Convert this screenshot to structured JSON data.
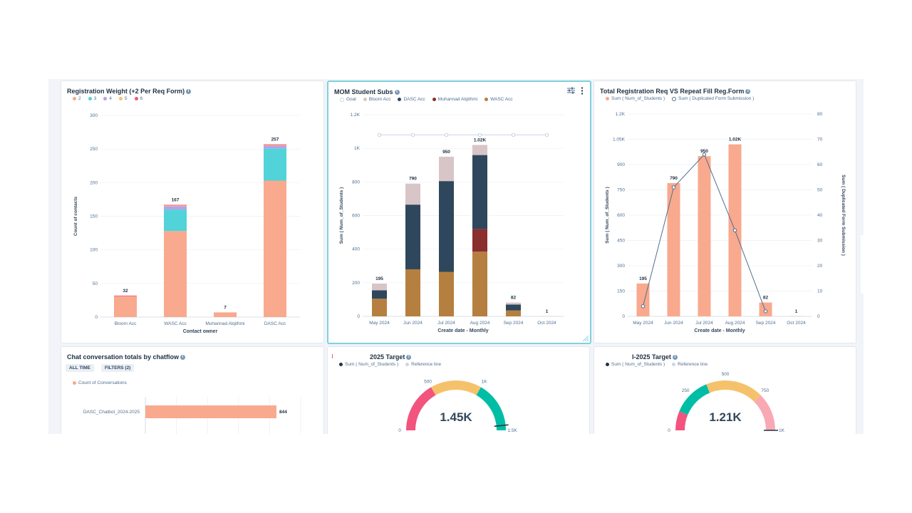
{
  "cards": {
    "reg_weight": {
      "title": "Registration Weight (+2 Per Req Form)",
      "legend": [
        {
          "label": "2",
          "color": "#f8a98e"
        },
        {
          "label": "3",
          "color": "#51d3d9"
        },
        {
          "label": "4",
          "color": "#b9a0e8"
        },
        {
          "label": "5",
          "color": "#f5c26b"
        },
        {
          "label": "6",
          "color": "#f2547d"
        }
      ]
    },
    "mom": {
      "title": "MOM Student Subs",
      "settings_icon": "sliders-icon",
      "menu_icon": "more-vertical-icon",
      "legend": [
        {
          "label": "Goal",
          "color": "#cbd6e2",
          "style": "open"
        },
        {
          "label": "Bloom Acc",
          "color": "#d8c5c7"
        },
        {
          "label": "DASC Acc",
          "color": "#2e475d"
        },
        {
          "label": "Muhannad Alqithmi",
          "color": "#8b2e2e"
        },
        {
          "label": "WASC Acc",
          "color": "#b57f40"
        }
      ]
    },
    "total_reg": {
      "title": "Total Registration Req VS Repeat Fill Reg.Form",
      "legend": [
        {
          "label": "Sum ( Num_of_Students )",
          "color": "#f8a98e"
        },
        {
          "label": "Sum ( Duplicated Form Submission )",
          "color": "#516f90",
          "style": "open"
        }
      ]
    },
    "chat": {
      "title": "Chat conversation totals by chatflow",
      "chip_all": "ALL TIME",
      "chip_filters": "FILTERS (2)",
      "legend": [
        {
          "label": "Count of Conversations",
          "color": "#f8a98e"
        }
      ]
    },
    "target_2025": {
      "title": "2025 Target",
      "legend": [
        {
          "label": "Sum ( Num_of_Students )",
          "color": "#213343"
        },
        {
          "label": "Reference line",
          "color": "#cbd6e2"
        }
      ]
    },
    "i_target_2025": {
      "title": "I-2025 Target",
      "legend": [
        {
          "label": "Sum ( Num_of_Students )",
          "color": "#213343"
        },
        {
          "label": "Reference line",
          "color": "#cbd6e2"
        }
      ]
    }
  },
  "chart_data": [
    {
      "id": "reg_weight",
      "type": "bar",
      "stacked": true,
      "title": "Registration Weight (+2 Per Req Form)",
      "xlabel": "Contact owner",
      "ylabel": "Count of contacts",
      "ylim": [
        0,
        300
      ],
      "yticks": [
        0,
        50,
        100,
        150,
        200,
        250,
        300
      ],
      "categories": [
        "Bloom Acc",
        "WASC Acc",
        "Muhannad Alqithmi",
        "DASC Acc"
      ],
      "series": [
        {
          "name": "2",
          "color": "#f8a98e",
          "values": [
            31,
            128,
            7,
            203
          ]
        },
        {
          "name": "3",
          "color": "#51d3d9",
          "values": [
            0,
            32,
            0,
            48
          ]
        },
        {
          "name": "4",
          "color": "#b9a0e8",
          "values": [
            0,
            5,
            0,
            4
          ]
        },
        {
          "name": "5",
          "color": "#f5c26b",
          "values": [
            0,
            1,
            0,
            1
          ]
        },
        {
          "name": "6",
          "color": "#f2547d",
          "values": [
            1,
            1,
            0,
            1
          ]
        }
      ],
      "totals": [
        "32",
        "167",
        "7",
        "257"
      ]
    },
    {
      "id": "mom",
      "type": "bar",
      "stacked": true,
      "title": "MOM Student Subs",
      "xlabel": "Create date - Monthly",
      "ylabel": "Sum ( Num_of_Students )",
      "ylim": [
        0,
        1200
      ],
      "yticks": [
        0,
        200,
        400,
        600,
        800,
        1000,
        1200
      ],
      "ytick_labels": [
        "0",
        "200",
        "400",
        "600",
        "800",
        "1K",
        "1.2K"
      ],
      "categories": [
        "May 2024",
        "Jun 2024",
        "Jul 2024",
        "Aug 2024",
        "Sep 2024",
        "Oct 2024"
      ],
      "series": [
        {
          "name": "WASC Acc",
          "color": "#b57f40",
          "values": [
            105,
            280,
            265,
            385,
            35,
            0
          ]
        },
        {
          "name": "Muhannad Alqithmi",
          "color": "#8b2e2e",
          "values": [
            0,
            0,
            0,
            135,
            0,
            0
          ]
        },
        {
          "name": "DASC Acc",
          "color": "#2e475d",
          "values": [
            50,
            385,
            540,
            440,
            35,
            0
          ]
        },
        {
          "name": "Bloom Acc",
          "color": "#d8c5c7",
          "values": [
            40,
            125,
            145,
            60,
            12,
            1
          ]
        }
      ],
      "goal": {
        "name": "Goal",
        "value": 1080
      },
      "totals": [
        "195",
        "790",
        "950",
        "1.02K",
        "82",
        "1"
      ]
    },
    {
      "id": "total_reg",
      "type": "bar",
      "title": "Total Registration Req VS Repeat Fill Reg.Form",
      "xlabel": "Create date - Monthly",
      "ylabel": "Sum ( Num_of_Students )",
      "ylabel_right": "Sum ( Duplicated Form Submission )",
      "ylim": [
        0,
        1200
      ],
      "yticks": [
        0,
        150,
        300,
        450,
        600,
        750,
        900,
        1050,
        1200
      ],
      "ytick_labels": [
        "0",
        "150",
        "300",
        "450",
        "600",
        "750",
        "900",
        "1.05K",
        "1.2K"
      ],
      "ylim_right": [
        0,
        80
      ],
      "yticks_right": [
        0,
        10,
        20,
        30,
        40,
        50,
        60,
        70,
        80
      ],
      "categories": [
        "May 2024",
        "Jun 2024",
        "Jul 2024",
        "Aug 2024",
        "Sep 2024",
        "Oct 2024"
      ],
      "series": [
        {
          "name": "Sum ( Num_of_Students )",
          "type": "bar",
          "color": "#f8a98e",
          "values": [
            195,
            790,
            950,
            1020,
            82,
            1
          ]
        },
        {
          "name": "Sum ( Duplicated Form Submission )",
          "type": "line",
          "axis": "right",
          "color": "#516f90",
          "values": [
            4,
            51,
            64,
            34,
            2,
            null
          ]
        }
      ],
      "totals": [
        "195",
        "790",
        "950",
        "1.02K",
        "82",
        "1"
      ]
    },
    {
      "id": "chat",
      "type": "bar",
      "orientation": "horizontal",
      "title": "Chat conversation totals by chatflow",
      "categories": [
        "DASC_Chatbot_2024-2025"
      ],
      "series": [
        {
          "name": "Count of Conversations",
          "color": "#f8a98e",
          "values": [
            844
          ]
        }
      ],
      "xlim": [
        0,
        1000
      ]
    },
    {
      "id": "target_2025",
      "type": "gauge",
      "title": "2025 Target",
      "value": 1450,
      "value_label": "1.45K",
      "range": [
        0,
        1500
      ],
      "tick_labels": [
        "0",
        "500",
        "1K",
        "1.5K"
      ],
      "bands": [
        {
          "from": 0,
          "to": 500,
          "color": "#f2547d"
        },
        {
          "from": 500,
          "to": 1000,
          "color": "#f5c26b"
        },
        {
          "from": 1000,
          "to": 1500,
          "color": "#00bda5"
        }
      ]
    },
    {
      "id": "i_target_2025",
      "type": "gauge",
      "title": "I-2025 Target",
      "value": 1210,
      "value_label": "1.21K",
      "range": [
        0,
        1000
      ],
      "tick_labels": [
        "0",
        "250",
        "500",
        "750",
        "1K"
      ],
      "bands": [
        {
          "from": 0,
          "to": 125,
          "color": "#f2547d"
        },
        {
          "from": 125,
          "to": 375,
          "color": "#00bda5"
        },
        {
          "from": 375,
          "to": 750,
          "color": "#f5c26b"
        },
        {
          "from": 750,
          "to": 1000,
          "color": "#f8a9b4"
        }
      ]
    }
  ]
}
